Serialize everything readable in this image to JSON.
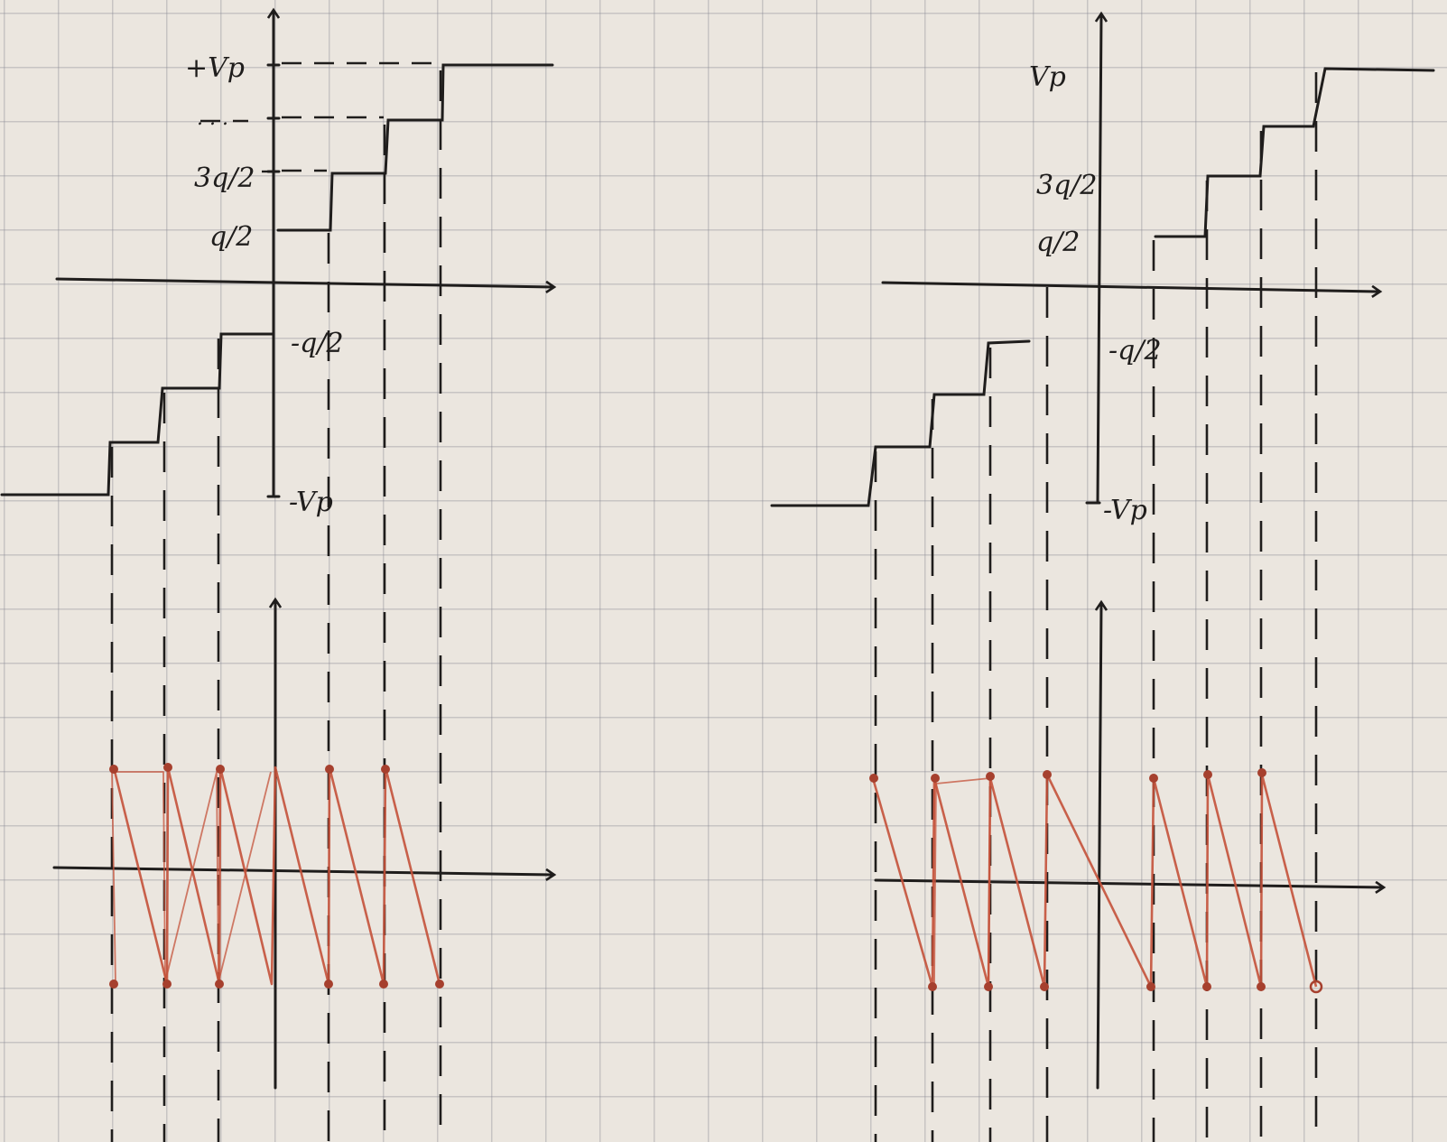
{
  "left_figure": {
    "labels": {
      "plus_vp": "+Vp",
      "dots": ". . .",
      "three_q_half": "3q/2",
      "q_half": "q/2",
      "minus_q_half": "-q/2",
      "minus_vp": "-Vp"
    }
  },
  "right_figure": {
    "labels": {
      "vp": "Vp",
      "three_q_half": "3q/2",
      "q_half": "q/2",
      "minus_q_half": "-q/2",
      "minus_vp": "-Vp"
    }
  },
  "colors": {
    "ink": "#1f1d1c",
    "error_trace": "#c4513a",
    "paper": "#ebe6df"
  }
}
